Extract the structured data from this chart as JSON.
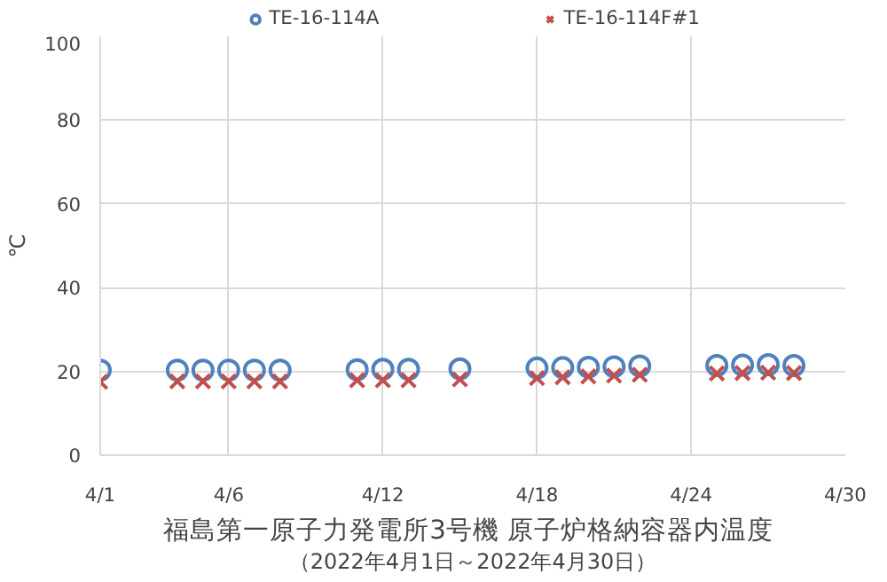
{
  "chart_data": {
    "type": "scatter",
    "title": "福島第一原子力発電所3号機  原子炉格納容器内温度",
    "subtitle": "（2022年4月1日～2022年4月30日）",
    "ylabel": "℃",
    "x": [
      "2022-04-01",
      "2022-04-04",
      "2022-04-05",
      "2022-04-06",
      "2022-04-07",
      "2022-04-08",
      "2022-04-11",
      "2022-04-12",
      "2022-04-13",
      "2022-04-15",
      "2022-04-18",
      "2022-04-19",
      "2022-04-20",
      "2022-04-21",
      "2022-04-22",
      "2022-04-25",
      "2022-04-26",
      "2022-04-27",
      "2022-04-28"
    ],
    "series": [
      {
        "name": "TE-16-114A",
        "color": "#4f81bd",
        "marker": "circle",
        "values": [
          20.3,
          20.3,
          20.3,
          20.3,
          20.3,
          20.3,
          20.4,
          20.5,
          20.5,
          20.6,
          20.8,
          20.9,
          21.0,
          21.1,
          21.3,
          21.4,
          21.5,
          21.6,
          21.4
        ]
      },
      {
        "name": "TE-16-114F#1",
        "color": "#c0504d",
        "marker": "cross",
        "values": [
          17.5,
          17.6,
          17.6,
          17.6,
          17.6,
          17.6,
          17.9,
          17.9,
          17.9,
          18.1,
          18.4,
          18.6,
          18.8,
          19.0,
          19.2,
          19.5,
          19.6,
          19.7,
          19.6
        ]
      }
    ],
    "xlim": [
      "2022-04-01",
      "2022-04-30"
    ],
    "xticks": [
      {
        "value": "2022-04-01",
        "label": "4/1"
      },
      {
        "value": "2022-04-06",
        "label": "4/6"
      },
      {
        "value": "2022-04-12",
        "label": "4/12"
      },
      {
        "value": "2022-04-18",
        "label": "4/18"
      },
      {
        "value": "2022-04-24",
        "label": "4/24"
      },
      {
        "value": "2022-04-30",
        "label": "4/30"
      }
    ],
    "ylim": [
      0,
      100
    ],
    "yticks": [
      0,
      20,
      40,
      60,
      80,
      100
    ],
    "grid": true,
    "legend": "top"
  }
}
